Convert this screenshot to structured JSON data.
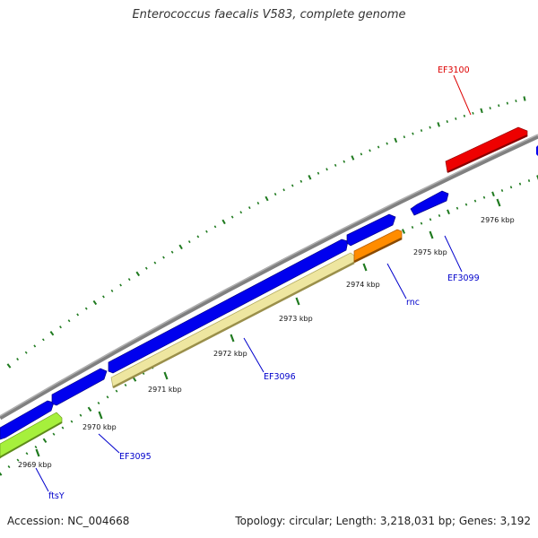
{
  "title": "Enterococcus faecalis V583, complete genome",
  "footer": {
    "accession": "Accession: NC_004668",
    "summary": "Topology: circular; Length: 3,218,031 bp; Genes: 3,192"
  },
  "colors": {
    "backbone": "#8a8a8a",
    "tick": "#1f7a1f",
    "forward_gene": "#0000ee",
    "reverse_tan": "#eee6a0",
    "reverse_orange": "#ff8c00",
    "reverse_red": "#ee0000",
    "reverse_green": "#a6f03c",
    "label_blue": "#0000cc",
    "label_red": "#dd0000"
  },
  "ticks": [
    {
      "label": "2969 kbp"
    },
    {
      "label": "2970 kbp"
    },
    {
      "label": "2971 kbp"
    },
    {
      "label": "2972 kbp"
    },
    {
      "label": "2973 kbp"
    },
    {
      "label": "2974 kbp"
    },
    {
      "label": "2975 kbp"
    },
    {
      "label": "2976 kbp"
    }
  ],
  "gene_labels": [
    {
      "name": "ftsY"
    },
    {
      "name": "EF3095"
    },
    {
      "name": "EF3096"
    },
    {
      "name": "rnc"
    },
    {
      "name": "EF3099"
    },
    {
      "name": "EF3100"
    }
  ]
}
